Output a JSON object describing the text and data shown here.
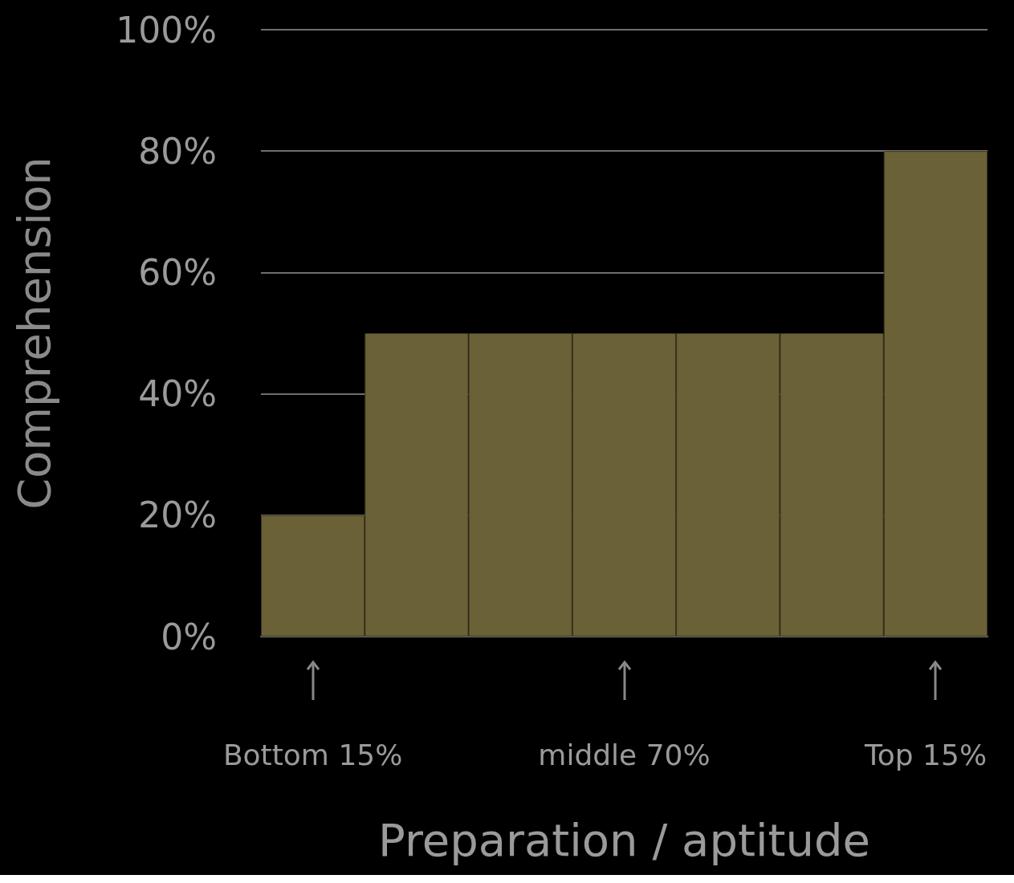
{
  "chart_data": {
    "type": "bar",
    "xlabel": "Preparation / aptitude",
    "ylabel": "Comprehension",
    "categories": [
      null,
      null,
      null,
      null,
      null,
      null,
      null
    ],
    "values": [
      20,
      50,
      50,
      50,
      50,
      50,
      80
    ],
    "color": "#6b6136",
    "ylim": [
      0,
      100
    ],
    "yticks": [
      {
        "value": 0,
        "label": "0%"
      },
      {
        "value": 20,
        "label": "20%"
      },
      {
        "value": 40,
        "label": "40%"
      },
      {
        "value": 60,
        "label": "60%"
      },
      {
        "value": 80,
        "label": "80%"
      },
      {
        "value": 100,
        "label": "100%"
      }
    ],
    "grid": "y",
    "annotations": [
      "Bottom 15%",
      "middle 70%",
      "Top 15%"
    ]
  }
}
